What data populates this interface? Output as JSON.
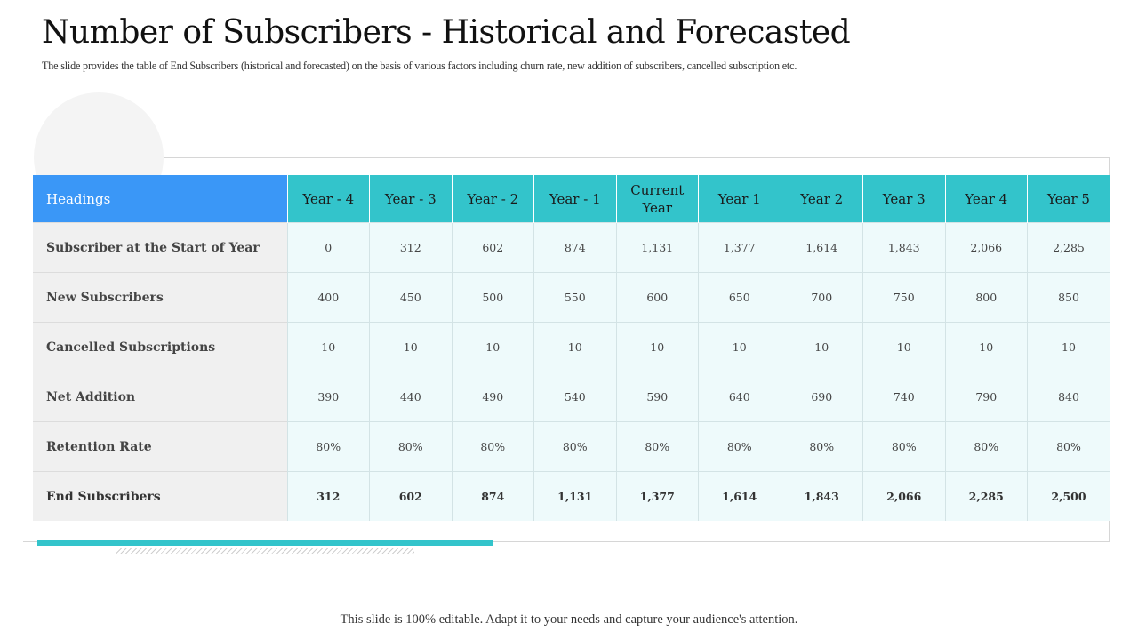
{
  "slide": {
    "title": "Number of Subscribers - Historical and Forecasted",
    "subtitle": "The slide provides the table of End Subscribers (historical and forecasted) on the basis of various factors including churn rate, new addition of subscribers, cancelled subscription etc.",
    "footer": "This slide is 100% editable. Adapt it to your needs and capture your audience's attention."
  },
  "colors": {
    "header_label_bg": "#3a97f7",
    "header_year_bg": "#33c4cb",
    "cell_bg": "#eefafb",
    "label_bg": "#f0f0f0",
    "accent_bar": "#33c4cb"
  },
  "table": {
    "header_label": "Headings",
    "columns": [
      "Year - 4",
      "Year - 3",
      "Year - 2",
      "Year - 1",
      "Current Year",
      "Year 1",
      "Year 2",
      "Year 3",
      "Year 4",
      "Year 5"
    ],
    "rows": [
      {
        "label": "Subscriber at the Start of Year",
        "values": [
          "0",
          "312",
          "602",
          "874",
          "1,131",
          "1,377",
          "1,614",
          "1,843",
          "2,066",
          "2,285"
        ]
      },
      {
        "label": "New Subscribers",
        "values": [
          "400",
          "450",
          "500",
          "550",
          "600",
          "650",
          "700",
          "750",
          "800",
          "850"
        ]
      },
      {
        "label": "Cancelled Subscriptions",
        "values": [
          "10",
          "10",
          "10",
          "10",
          "10",
          "10",
          "10",
          "10",
          "10",
          "10"
        ]
      },
      {
        "label": "Net Addition",
        "values": [
          "390",
          "440",
          "490",
          "540",
          "590",
          "640",
          "690",
          "740",
          "790",
          "840"
        ]
      },
      {
        "label": "Retention Rate",
        "values": [
          "80%",
          "80%",
          "80%",
          "80%",
          "80%",
          "80%",
          "80%",
          "80%",
          "80%",
          "80%"
        ]
      },
      {
        "label": "End Subscribers",
        "values": [
          "312",
          "602",
          "874",
          "1,131",
          "1,377",
          "1,614",
          "1,843",
          "2,066",
          "2,285",
          "2,500"
        ]
      }
    ]
  }
}
